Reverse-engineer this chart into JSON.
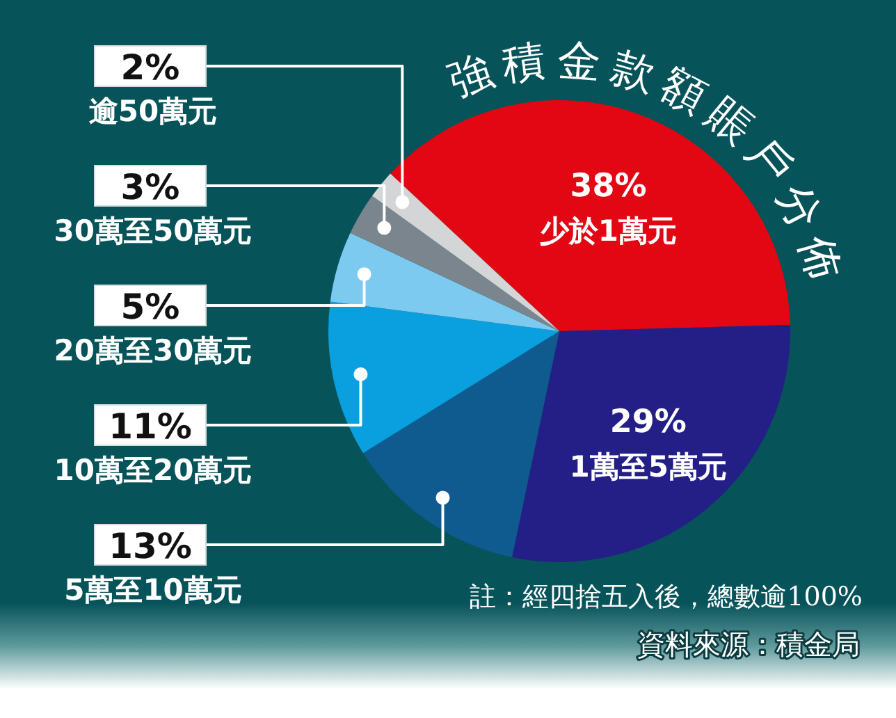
{
  "chart_data": {
    "type": "pie",
    "title": "強積金款額賬戶分佈",
    "categories": [
      "少於1萬元",
      "1萬至5萬元",
      "5萬至10萬元",
      "10萬至20萬元",
      "20萬至30萬元",
      "30萬至50萬元",
      "逾50萬元"
    ],
    "values": [
      38,
      29,
      13,
      11,
      5,
      3,
      2
    ],
    "colors": [
      "#e30613",
      "#241f86",
      "#0f5a8e",
      "#0aa0df",
      "#7ccaf0",
      "#7b858d",
      "#d3d5d7"
    ],
    "value_labels": [
      "38%",
      "29%",
      "13%",
      "11%",
      "5%",
      "3%",
      "2%"
    ],
    "annotations": [
      "註：經四捨五入後，總數逾100%",
      "資料來源：積金局"
    ]
  }
}
